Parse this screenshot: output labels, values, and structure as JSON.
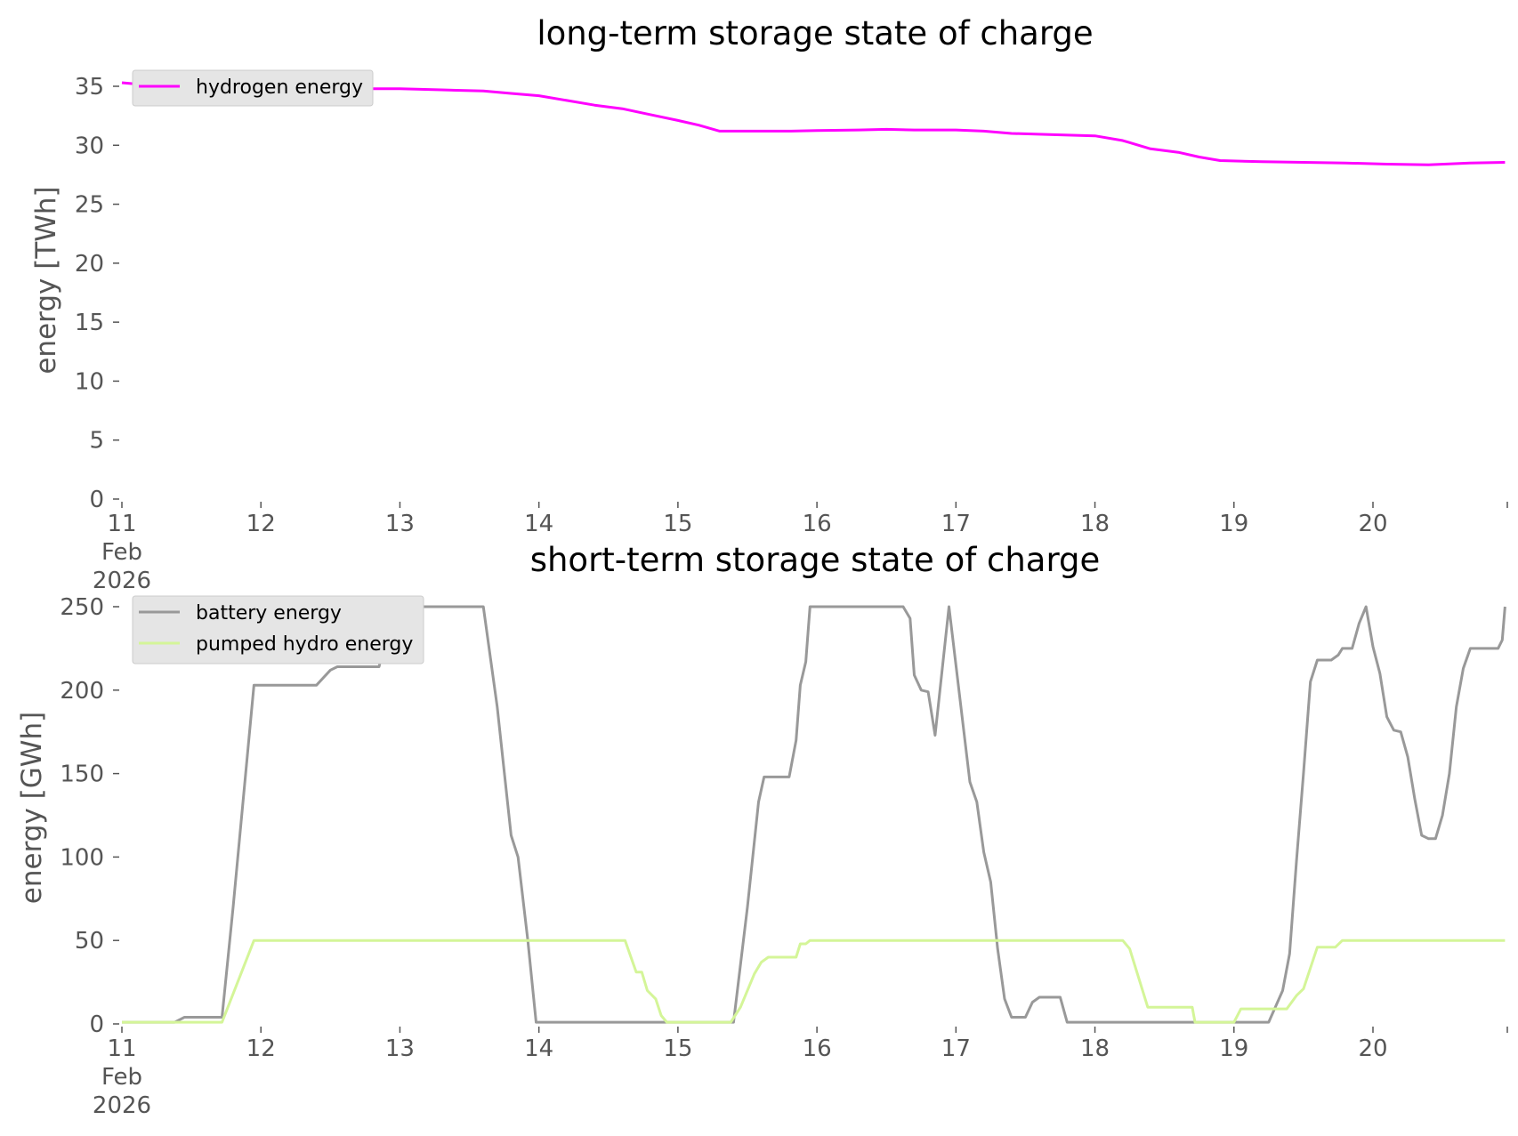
{
  "chart_data": [
    {
      "type": "line",
      "title": "long-term storage state of charge",
      "ylabel": "energy [TWh]",
      "xlabel": "",
      "ylim": [
        0,
        36
      ],
      "yticks": [
        0,
        5,
        10,
        15,
        20,
        25,
        30,
        35
      ],
      "xlim": [
        11,
        20.95
      ],
      "xticks": [
        {
          "value": 11,
          "lines": [
            "11",
            "Feb",
            "2026"
          ]
        },
        {
          "value": 12,
          "lines": [
            "12"
          ]
        },
        {
          "value": 13,
          "lines": [
            "13"
          ]
        },
        {
          "value": 14,
          "lines": [
            "14"
          ]
        },
        {
          "value": 15,
          "lines": [
            "15"
          ]
        },
        {
          "value": 16,
          "lines": [
            "16"
          ]
        },
        {
          "value": 17,
          "lines": [
            "17"
          ]
        },
        {
          "value": 18,
          "lines": [
            "18"
          ]
        },
        {
          "value": 19,
          "lines": [
            "19"
          ]
        },
        {
          "value": 20,
          "lines": [
            "20"
          ]
        }
      ],
      "x_unit": "day of Feb 2026",
      "grid": false,
      "legend_position": "top-left",
      "series": [
        {
          "name": "hydrogen energy",
          "color": "#ff00ff",
          "points": [
            [
              11.0,
              35.3
            ],
            [
              11.2,
              35.1
            ],
            [
              11.5,
              35.0
            ],
            [
              12.0,
              34.9
            ],
            [
              12.5,
              34.8
            ],
            [
              13.0,
              34.8
            ],
            [
              13.3,
              34.7
            ],
            [
              13.6,
              34.6
            ],
            [
              13.8,
              34.4
            ],
            [
              14.0,
              34.2
            ],
            [
              14.2,
              33.8
            ],
            [
              14.4,
              33.4
            ],
            [
              14.6,
              33.1
            ],
            [
              14.8,
              32.6
            ],
            [
              15.0,
              32.1
            ],
            [
              15.15,
              31.7
            ],
            [
              15.3,
              31.2
            ],
            [
              15.5,
              31.2
            ],
            [
              15.8,
              31.2
            ],
            [
              16.0,
              31.25
            ],
            [
              16.3,
              31.3
            ],
            [
              16.5,
              31.35
            ],
            [
              16.7,
              31.3
            ],
            [
              17.0,
              31.3
            ],
            [
              17.2,
              31.2
            ],
            [
              17.4,
              31.0
            ],
            [
              17.7,
              30.9
            ],
            [
              18.0,
              30.8
            ],
            [
              18.2,
              30.4
            ],
            [
              18.4,
              29.7
            ],
            [
              18.6,
              29.4
            ],
            [
              18.75,
              29.0
            ],
            [
              18.9,
              28.7
            ],
            [
              19.2,
              28.6
            ],
            [
              19.5,
              28.55
            ],
            [
              19.8,
              28.5
            ],
            [
              20.1,
              28.4
            ],
            [
              20.4,
              28.35
            ],
            [
              20.7,
              28.5
            ],
            [
              20.95,
              28.55
            ]
          ]
        }
      ]
    },
    {
      "type": "line",
      "title": "short-term storage state of charge",
      "ylabel": "energy [GWh]",
      "xlabel": "",
      "ylim": [
        0,
        252
      ],
      "yticks": [
        0,
        50,
        100,
        150,
        200,
        250
      ],
      "xlim": [
        11,
        20.95
      ],
      "xticks": [
        {
          "value": 11,
          "lines": [
            "11",
            "Feb",
            "2026"
          ]
        },
        {
          "value": 12,
          "lines": [
            "12"
          ]
        },
        {
          "value": 13,
          "lines": [
            "13"
          ]
        },
        {
          "value": 14,
          "lines": [
            "14"
          ]
        },
        {
          "value": 15,
          "lines": [
            "15"
          ]
        },
        {
          "value": 16,
          "lines": [
            "16"
          ]
        },
        {
          "value": 17,
          "lines": [
            "17"
          ]
        },
        {
          "value": 18,
          "lines": [
            "18"
          ]
        },
        {
          "value": 19,
          "lines": [
            "19"
          ]
        },
        {
          "value": 20,
          "lines": [
            "20"
          ]
        }
      ],
      "x_unit": "day of Feb 2026",
      "grid": false,
      "legend_position": "top-left",
      "series": [
        {
          "name": "battery energy",
          "color": "#999999",
          "points": [
            [
              11.0,
              1
            ],
            [
              11.38,
              1
            ],
            [
              11.45,
              4
            ],
            [
              11.72,
              4
            ],
            [
              11.8,
              70
            ],
            [
              11.95,
              203
            ],
            [
              12.4,
              203
            ],
            [
              12.5,
              212
            ],
            [
              12.55,
              214
            ],
            [
              12.85,
              214
            ],
            [
              12.95,
              250
            ],
            [
              13.6,
              250
            ],
            [
              13.7,
              190
            ],
            [
              13.8,
              113
            ],
            [
              13.85,
              100
            ],
            [
              13.92,
              50
            ],
            [
              13.98,
              1
            ],
            [
              15.4,
              1
            ],
            [
              15.5,
              70
            ],
            [
              15.58,
              133
            ],
            [
              15.62,
              148
            ],
            [
              15.8,
              148
            ],
            [
              15.85,
              170
            ],
            [
              15.88,
              203
            ],
            [
              15.92,
              217
            ],
            [
              15.95,
              250
            ],
            [
              16.62,
              250
            ],
            [
              16.67,
              243
            ],
            [
              16.7,
              209
            ],
            [
              16.75,
              200
            ],
            [
              16.8,
              199
            ],
            [
              16.85,
              173
            ],
            [
              16.95,
              250
            ],
            [
              17.1,
              145
            ],
            [
              17.15,
              133
            ],
            [
              17.2,
              103
            ],
            [
              17.25,
              85
            ],
            [
              17.3,
              45
            ],
            [
              17.35,
              15
            ],
            [
              17.4,
              4
            ],
            [
              17.5,
              4
            ],
            [
              17.55,
              13
            ],
            [
              17.6,
              16
            ],
            [
              17.75,
              16
            ],
            [
              17.8,
              1
            ],
            [
              19.25,
              1
            ],
            [
              19.35,
              20
            ],
            [
              19.4,
              42
            ],
            [
              19.45,
              98
            ],
            [
              19.5,
              150
            ],
            [
              19.55,
              205
            ],
            [
              19.6,
              218
            ],
            [
              19.7,
              218
            ],
            [
              19.75,
              221
            ],
            [
              19.78,
              225
            ],
            [
              19.85,
              225
            ],
            [
              19.9,
              240
            ],
            [
              19.95,
              250
            ],
            [
              20.0,
              226
            ],
            [
              20.05,
              210
            ],
            [
              20.1,
              184
            ],
            [
              20.15,
              176
            ],
            [
              20.2,
              175
            ],
            [
              20.25,
              160
            ],
            [
              20.3,
              135
            ],
            [
              20.35,
              113
            ],
            [
              20.4,
              111
            ],
            [
              20.45,
              111
            ],
            [
              20.5,
              125
            ],
            [
              20.55,
              150
            ],
            [
              20.6,
              190
            ],
            [
              20.65,
              213
            ],
            [
              20.7,
              225
            ],
            [
              20.9,
              225
            ],
            [
              20.93,
              230
            ],
            [
              20.95,
              250
            ]
          ]
        },
        {
          "name": "pumped hydro energy",
          "color": "#d4f598",
          "points": [
            [
              11.0,
              1
            ],
            [
              11.72,
              1
            ],
            [
              11.95,
              50
            ],
            [
              14.62,
              50
            ],
            [
              14.7,
              31
            ],
            [
              14.74,
              31
            ],
            [
              14.78,
              20
            ],
            [
              14.84,
              15
            ],
            [
              14.88,
              5
            ],
            [
              14.92,
              1
            ],
            [
              15.38,
              1
            ],
            [
              15.45,
              10
            ],
            [
              15.55,
              30
            ],
            [
              15.6,
              37
            ],
            [
              15.65,
              40
            ],
            [
              15.85,
              40
            ],
            [
              15.88,
              48
            ],
            [
              15.92,
              48
            ],
            [
              15.95,
              50
            ],
            [
              18.2,
              50
            ],
            [
              18.25,
              45
            ],
            [
              18.38,
              10
            ],
            [
              18.7,
              10
            ],
            [
              18.72,
              1
            ],
            [
              19.0,
              1
            ],
            [
              19.05,
              9
            ],
            [
              19.38,
              9
            ],
            [
              19.45,
              17
            ],
            [
              19.5,
              21
            ],
            [
              19.6,
              46
            ],
            [
              19.73,
              46
            ],
            [
              19.78,
              50
            ],
            [
              20.95,
              50
            ]
          ]
        }
      ]
    }
  ]
}
